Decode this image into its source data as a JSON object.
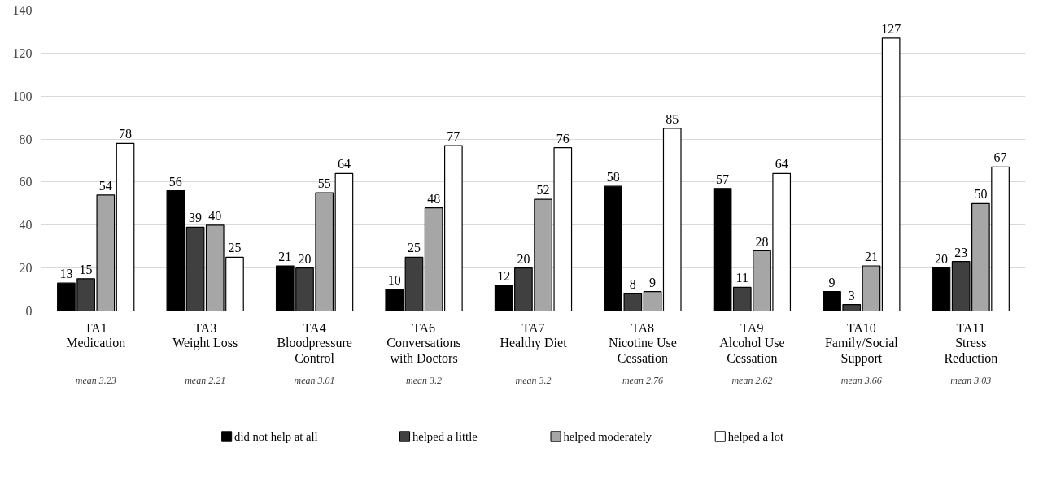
{
  "chart_data": {
    "type": "bar",
    "categories": [
      "TA1\nMedication",
      "TA3\nWeight Loss",
      "TA4\nBloodpressure\nControl",
      "TA6\nConversations\nwith Doctors",
      "TA7\nHealthy Diet",
      "TA8\nNicotine Use\nCessation",
      "TA9\nAlcohol Use\nCessation",
      "TA10\nFamily/Social\nSupport",
      "TA11\nStress\nReduction"
    ],
    "series": [
      {
        "name": "did not help at all",
        "color": "#000000",
        "values": [
          13,
          56,
          21,
          10,
          12,
          58,
          57,
          9,
          20
        ]
      },
      {
        "name": "helped a little",
        "color": "#404040",
        "values": [
          15,
          39,
          20,
          25,
          20,
          8,
          11,
          3,
          23
        ]
      },
      {
        "name": "helped moderately",
        "color": "#a6a6a6",
        "values": [
          54,
          40,
          55,
          48,
          52,
          9,
          28,
          21,
          50
        ]
      },
      {
        "name": "helped a lot",
        "color": "#ffffff",
        "values": [
          78,
          25,
          64,
          77,
          76,
          85,
          64,
          127,
          67
        ]
      }
    ],
    "annotations": [
      "mean 3.23",
      "mean 2.21",
      "mean 3.01",
      "mean 3.2",
      "mean 3.2",
      "mean 2.76",
      "mean 2.62",
      "mean 3.66",
      "mean 3.03"
    ],
    "ylim": [
      0,
      140
    ],
    "yticks": [
      0,
      20,
      40,
      60,
      80,
      100,
      120,
      140
    ],
    "grid": "y",
    "legend": "bottom",
    "data_labels": true
  }
}
